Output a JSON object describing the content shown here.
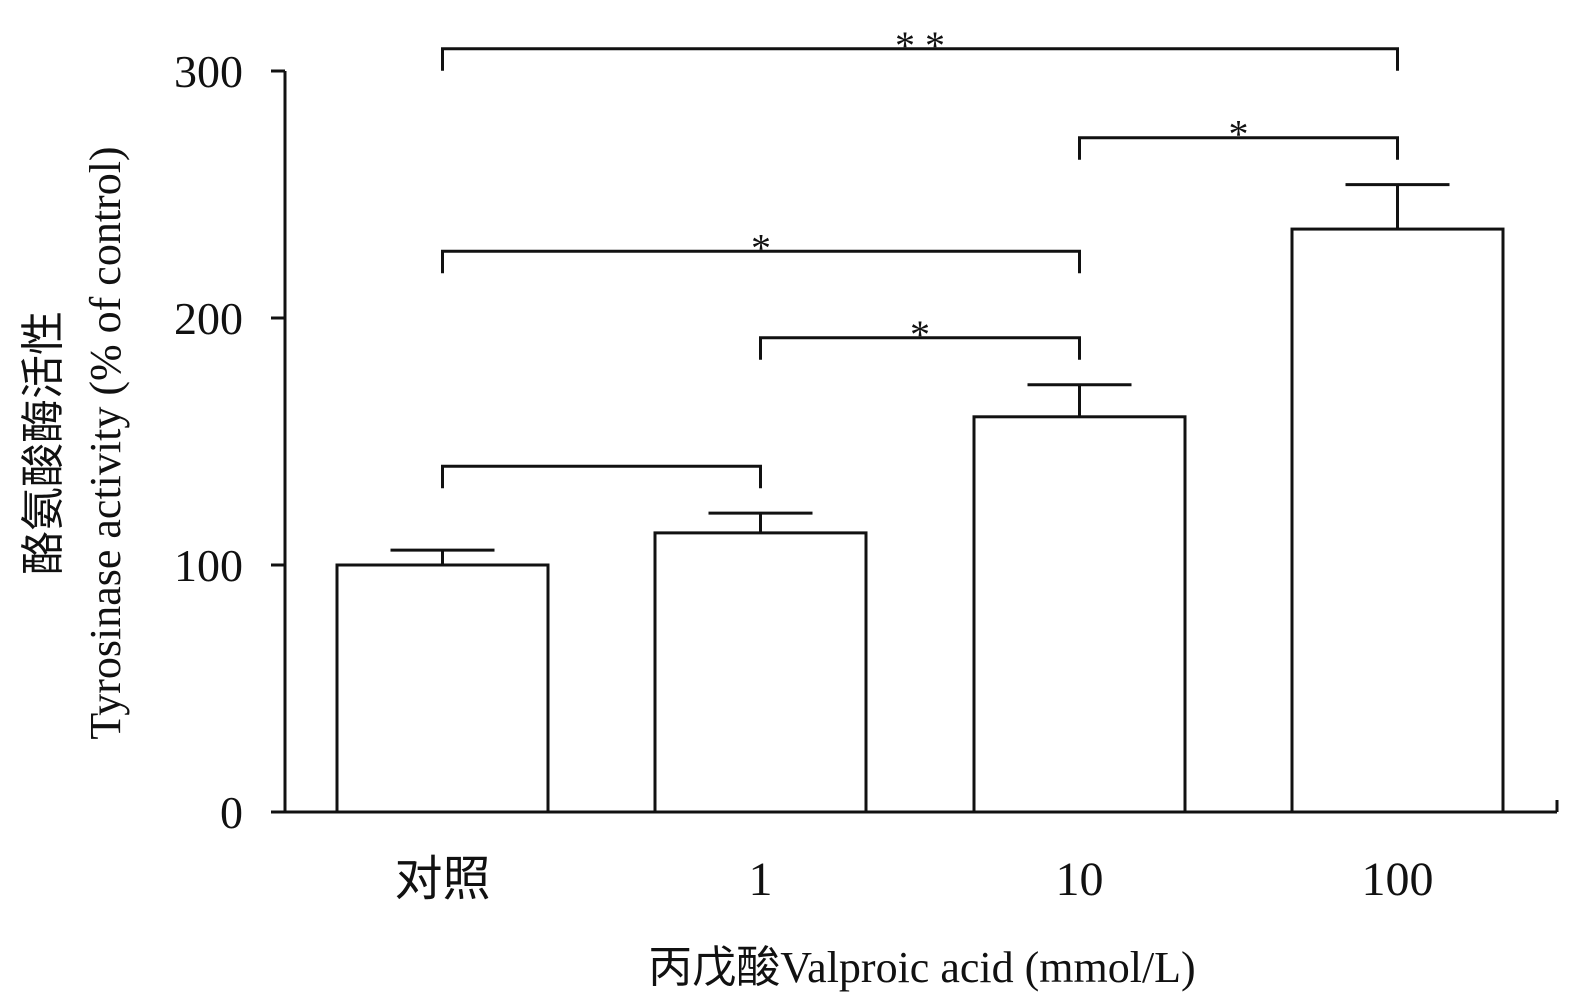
{
  "chart_data": {
    "type": "bar",
    "categories": [
      "对照",
      "1",
      "10",
      "100"
    ],
    "values": [
      100,
      113,
      160,
      236
    ],
    "errors": [
      6,
      8,
      13,
      18
    ],
    "ylabel_line1": "酪氨酸酶活性",
    "ylabel_line2": "Tyrosinase activity (% of control)",
    "xlabel": "丙戊酸Valproic acid (mmol/L)",
    "ylim": [
      0,
      300
    ],
    "yticks": [
      0,
      100,
      200,
      300
    ],
    "grid": false,
    "bar_color": "#ffffff",
    "stroke_color": "#111111",
    "comparisons": [
      {
        "from": 0,
        "to": 1,
        "label": "",
        "level": 140
      },
      {
        "from": 1,
        "to": 2,
        "label": "*",
        "level": 192
      },
      {
        "from": 0,
        "to": 2,
        "label": "*",
        "level": 227
      },
      {
        "from": 2,
        "to": 3,
        "label": "*",
        "level": 273
      },
      {
        "from": 0,
        "to": 3,
        "label": "**",
        "level": 309
      }
    ]
  }
}
